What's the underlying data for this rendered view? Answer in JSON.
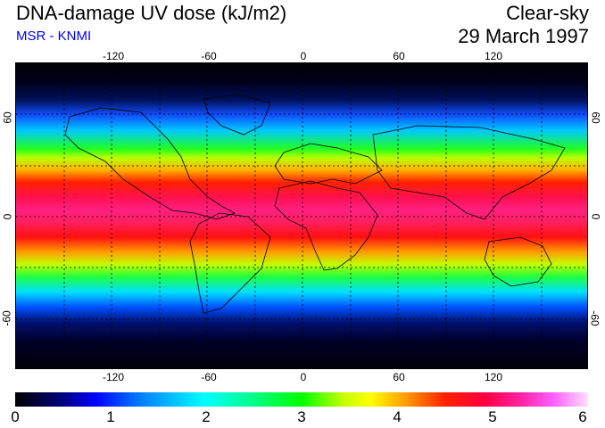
{
  "title": "DNA-damage UV dose (kJ/m2)",
  "subtitle": "MSR - KNMI",
  "condition": "Clear-sky",
  "date": "29 March 1997",
  "map": {
    "longitude_ticks": [
      "-120",
      "-60",
      "0",
      "60",
      "120"
    ],
    "latitude_ticks": [
      "60",
      "0",
      "-60"
    ],
    "projection": "equirectangular global",
    "gridlines": "dotted every 30 degrees"
  },
  "colorbar": {
    "labels": [
      "0",
      "1",
      "2",
      "3",
      "4",
      "5",
      "6"
    ],
    "min": 0,
    "max": 6
  },
  "colors": {
    "subtitle": "#0000ee",
    "high": "#ff20a0",
    "low": "#000000"
  }
}
